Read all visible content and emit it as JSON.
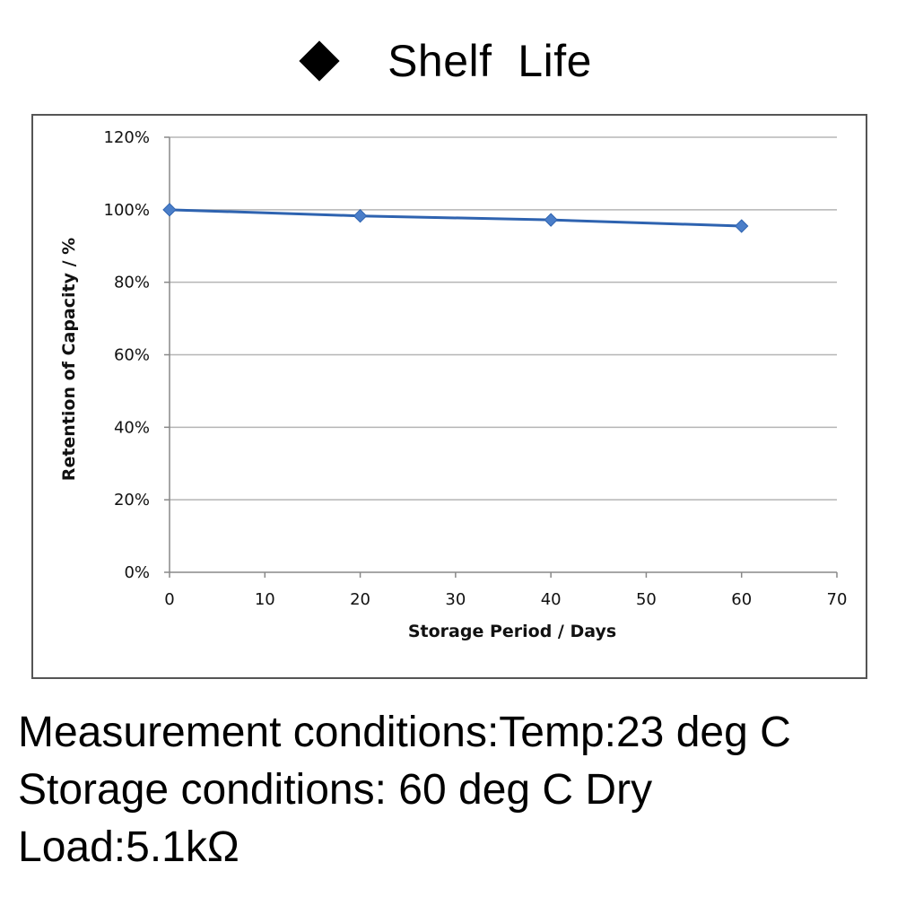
{
  "header": {
    "title": "Shelf  Life",
    "bullet_icon": "diamond-icon"
  },
  "chart_data": {
    "type": "line",
    "title": "",
    "xlabel": "Storage Period / Days",
    "ylabel": "Retention of Capacity / %",
    "xlim": [
      0,
      70
    ],
    "ylim": [
      0,
      120
    ],
    "x_ticks": [
      "0",
      "10",
      "20",
      "30",
      "40",
      "50",
      "60",
      "70"
    ],
    "y_ticks": [
      "0%",
      "20%",
      "40%",
      "60%",
      "80%",
      "100%",
      "120%"
    ],
    "grid": true,
    "legend": "none",
    "series": [
      {
        "x": [
          0,
          20,
          40,
          60
        ],
        "values": [
          100,
          98.3,
          97.2,
          95.5
        ],
        "color": "#2e63b0",
        "marker_color": "#4a7ec9"
      }
    ]
  },
  "notes": {
    "line1": "Measurement conditions:Temp:23 deg C",
    "line2": "Storage conditions: 60 deg C Dry",
    "line3": "Load:5.1kΩ"
  }
}
